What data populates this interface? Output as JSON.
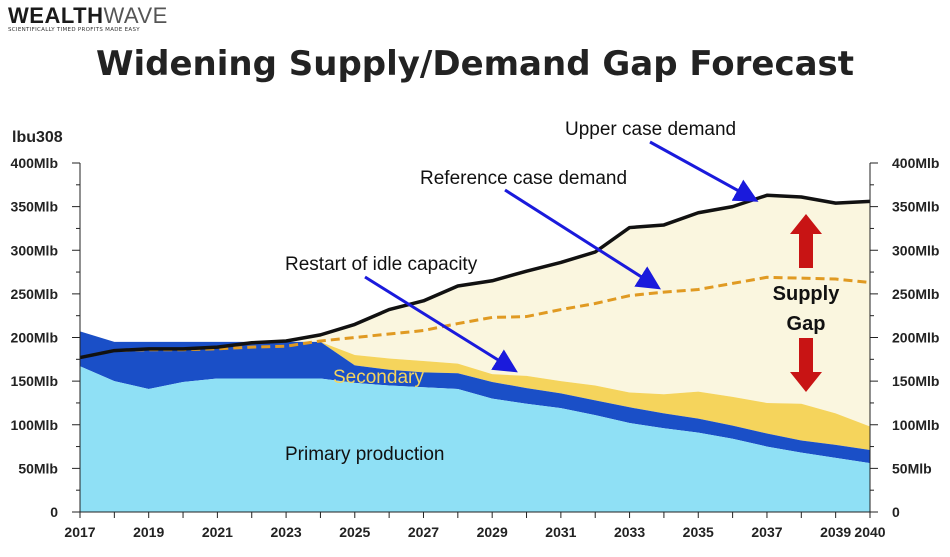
{
  "brand": {
    "name_bold": "WEALTH",
    "name_light": "WAVE",
    "tagline": "SCIENTIFICALLY TIMED PROFITS MADE EASY"
  },
  "colors": {
    "primary": "#8fe0f5",
    "secondary_band": "#1a4fc7",
    "secondary_label": "#f5d45c",
    "supply_gap": "#faf6df",
    "upper_line": "#111111",
    "reference_line": "#e09a22",
    "arrow": "#1a1adc",
    "gap_arrow": "#c81414"
  },
  "chart_data": {
    "type": "area",
    "title": "Widening Supply/Demand Gap Forecast",
    "ylabel_left": "lbu308",
    "ylim": [
      0,
      400
    ],
    "xlim": [
      2017,
      2040
    ],
    "grid": false,
    "y_ticks_left": [
      "0",
      "50Mlb",
      "100Mlb",
      "150Mlb",
      "200Mlb",
      "250Mlb",
      "300Mlb",
      "350Mlb",
      "400Mlb"
    ],
    "y_ticks_right": [
      "0",
      "50Mlb",
      "100Mlb",
      "150Mlb",
      "200Mlb",
      "250Mlb",
      "300Mlb",
      "350Mlb",
      "400Mlb"
    ],
    "x_ticks": [
      "2017",
      "2019",
      "2021",
      "2023",
      "2025",
      "2027",
      "2029",
      "2031",
      "2033",
      "2035",
      "2037",
      "2039",
      "2040"
    ],
    "x": [
      2017,
      2018,
      2019,
      2020,
      2021,
      2022,
      2023,
      2024,
      2025,
      2026,
      2027,
      2028,
      2029,
      2030,
      2031,
      2032,
      2033,
      2034,
      2035,
      2036,
      2037,
      2038,
      2039,
      2040
    ],
    "series": [
      {
        "name": "Primary production",
        "kind": "stack",
        "values": [
          167,
          150,
          141,
          149,
          153,
          153,
          153,
          153,
          148,
          145,
          143,
          141,
          130,
          124,
          119,
          111,
          102,
          96,
          91,
          84,
          75,
          68,
          62,
          56
        ]
      },
      {
        "name": "Secondary",
        "kind": "stack",
        "values": [
          40,
          45,
          54,
          46,
          42,
          42,
          42,
          42,
          20,
          18,
          17,
          18,
          19,
          18,
          17,
          17,
          18,
          17,
          16,
          15,
          15,
          14,
          15,
          15
        ]
      },
      {
        "name": "Restart of idle capacity",
        "kind": "stack",
        "values": [
          0,
          0,
          0,
          0,
          0,
          0,
          0,
          0,
          12,
          13,
          13,
          11,
          9,
          14,
          14,
          17,
          17,
          22,
          31,
          33,
          35,
          42,
          36,
          27
        ]
      },
      {
        "name": "Upper case demand",
        "kind": "line",
        "values": [
          177,
          185,
          187,
          187,
          189,
          194,
          196,
          203,
          215,
          232,
          242,
          259,
          265,
          276,
          286,
          298,
          326,
          329,
          343,
          350,
          363,
          361,
          354,
          356
        ]
      },
      {
        "name": "Reference case demand",
        "kind": "dashed",
        "values": [
          177,
          185,
          186,
          186,
          187,
          189,
          190,
          196,
          200,
          204,
          208,
          216,
          223,
          224,
          232,
          239,
          248,
          252,
          255,
          262,
          269,
          268,
          267,
          263
        ]
      }
    ],
    "annotations": {
      "upper": "Upper case demand",
      "reference": "Reference case demand",
      "restart": "Restart of idle capacity",
      "secondary": "Secondary",
      "primary": "Primary production",
      "gap_line1": "Supply",
      "gap_line2": "Gap"
    }
  }
}
